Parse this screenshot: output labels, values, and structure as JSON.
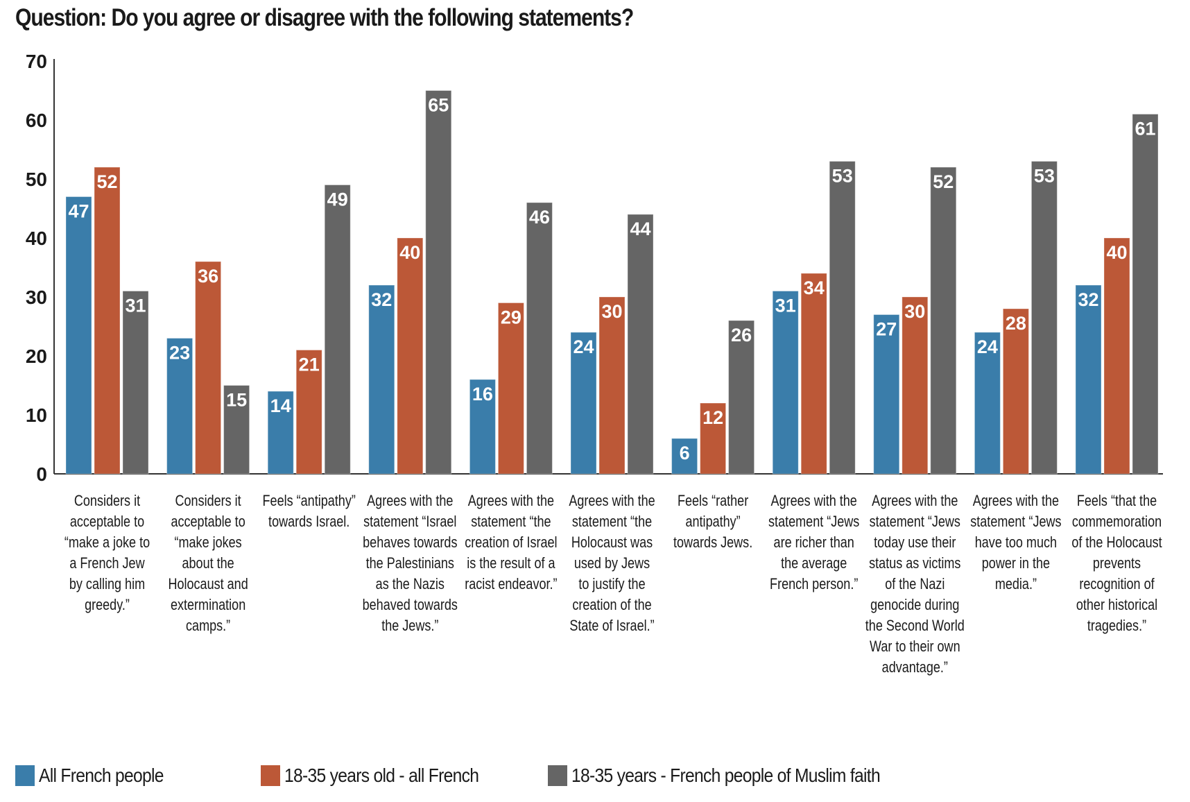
{
  "title": "Question: Do you agree or disagree with the following statements?",
  "chart_data": {
    "type": "bar",
    "title": "Question: Do you agree or disagree with the following statements?",
    "xlabel": "",
    "ylabel": "",
    "ylim": [
      0,
      70
    ],
    "yticks": [
      0,
      10,
      20,
      30,
      40,
      50,
      60,
      70
    ],
    "grid": false,
    "legend_position": "bottom",
    "categories": [
      [
        "Considers it",
        "acceptable to",
        "“make a joke to",
        "a French Jew",
        "by calling him",
        "greedy.”"
      ],
      [
        "Considers it",
        "acceptable to",
        "“make jokes",
        "about the",
        "Holocaust and",
        "extermination",
        "camps.”"
      ],
      [
        "Feels “antipathy”",
        "towards Israel."
      ],
      [
        "Agrees with the",
        "statement “Israel",
        "behaves towards",
        "the Palestinians",
        "as the Nazis",
        "behaved towards",
        "the Jews.”"
      ],
      [
        "Agrees with the",
        "statement “the",
        "creation of Israel",
        "is the result of a",
        "racist endeavor.”"
      ],
      [
        "Agrees with the",
        "statement “the",
        "Holocaust was",
        "used by Jews",
        "to justify the",
        "creation of the",
        "State of Israel.”"
      ],
      [
        "Feels “rather",
        "antipathy”",
        "towards Jews."
      ],
      [
        "Agrees with the",
        "statement “Jews",
        "are richer than",
        "the average",
        "French person.”"
      ],
      [
        "Agrees with the",
        "statement “Jews",
        "today use their",
        "status as victims",
        "of the Nazi",
        "genocide during",
        "the Second World",
        "War to their own",
        "advantage.”"
      ],
      [
        "Agrees with the",
        "statement “Jews",
        "have too much",
        "power in the",
        "media.”"
      ],
      [
        "Feels “that the",
        "commemoration",
        "of the Holocaust",
        "prevents",
        "recognition of",
        "other historical",
        "tragedies.”"
      ]
    ],
    "series": [
      {
        "name": "All French people",
        "color": "#3a7daa",
        "values": [
          47,
          23,
          14,
          32,
          16,
          24,
          6,
          31,
          27,
          24,
          32
        ]
      },
      {
        "name": "18-35 years old - all French",
        "color": "#bc5837",
        "values": [
          52,
          36,
          21,
          40,
          29,
          30,
          12,
          34,
          30,
          28,
          40
        ]
      },
      {
        "name": "18-35 years - French people of Muslim faith",
        "color": "#656565",
        "values": [
          31,
          15,
          49,
          65,
          46,
          44,
          26,
          53,
          52,
          53,
          61
        ]
      }
    ]
  }
}
